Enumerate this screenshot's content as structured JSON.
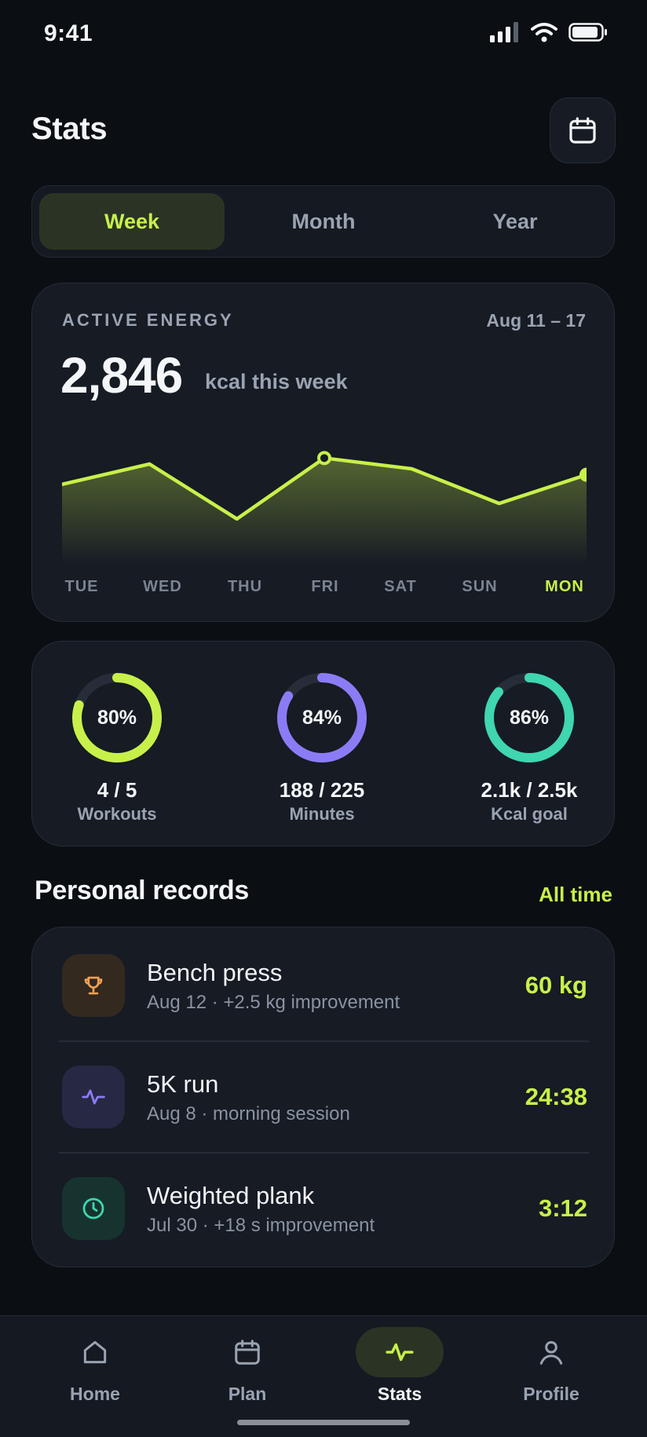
{
  "status": {
    "time": "9:41"
  },
  "header": {
    "title": "Stats",
    "calendar_icon": "calendar-icon"
  },
  "segments": [
    {
      "label": "Week",
      "active": true
    },
    {
      "label": "Month",
      "active": false
    },
    {
      "label": "Year",
      "active": false
    }
  ],
  "energy": {
    "label": "ACTIVE ENERGY",
    "range": "Aug 11 – 17",
    "value": "2,846",
    "unit": "kcal this week"
  },
  "chart_data": {
    "type": "area",
    "categories": [
      "TUE",
      "WED",
      "THU",
      "FRI",
      "SAT",
      "SUN",
      "MON"
    ],
    "values": [
      0.62,
      0.79,
      0.33,
      0.84,
      0.75,
      0.46,
      0.7
    ],
    "value_scale": "relative 0-1 (no y axis printed)",
    "highlight_index": 3,
    "today_index": 6,
    "color": "#c8f04a"
  },
  "rings": [
    {
      "pct": "80%",
      "fraction": 0.8,
      "value": "4 / 5",
      "label": "Workouts",
      "color": "#c8f04a"
    },
    {
      "pct": "84%",
      "fraction": 0.84,
      "value": "188 / 225",
      "label": "Minutes",
      "color": "#8b7cf6"
    },
    {
      "pct": "86%",
      "fraction": 0.86,
      "value": "2.1k / 2.5k",
      "label": "Kcal goal",
      "color": "#3fd6b0"
    }
  ],
  "records_section": {
    "title": "Personal records",
    "link": "All time"
  },
  "records": [
    {
      "name": "Bench press",
      "sub": "Aug 12 · +2.5 kg improvement",
      "value": "60 kg",
      "icon": "trophy-icon",
      "icon_color": "#f2a154",
      "icon_bg": "#33291f"
    },
    {
      "name": "5K run",
      "sub": "Aug 8 · morning session",
      "value": "24:38",
      "icon": "activity-icon",
      "icon_color": "#8b7cf6",
      "icon_bg": "#272844"
    },
    {
      "name": "Weighted plank",
      "sub": "Jul 30 · +18 s improvement",
      "value": "3:12",
      "icon": "clock-icon",
      "icon_color": "#3fd6b0",
      "icon_bg": "#173330"
    }
  ],
  "tabs": [
    {
      "label": "Home",
      "icon": "home-icon",
      "active": false
    },
    {
      "label": "Plan",
      "icon": "calendar-icon",
      "active": false
    },
    {
      "label": "Stats",
      "icon": "activity-icon",
      "active": true
    },
    {
      "label": "Profile",
      "icon": "user-icon",
      "active": false
    }
  ],
  "colors": {
    "accent": "#c8f04a",
    "background": "#0b0e13",
    "card": "#161b24"
  }
}
